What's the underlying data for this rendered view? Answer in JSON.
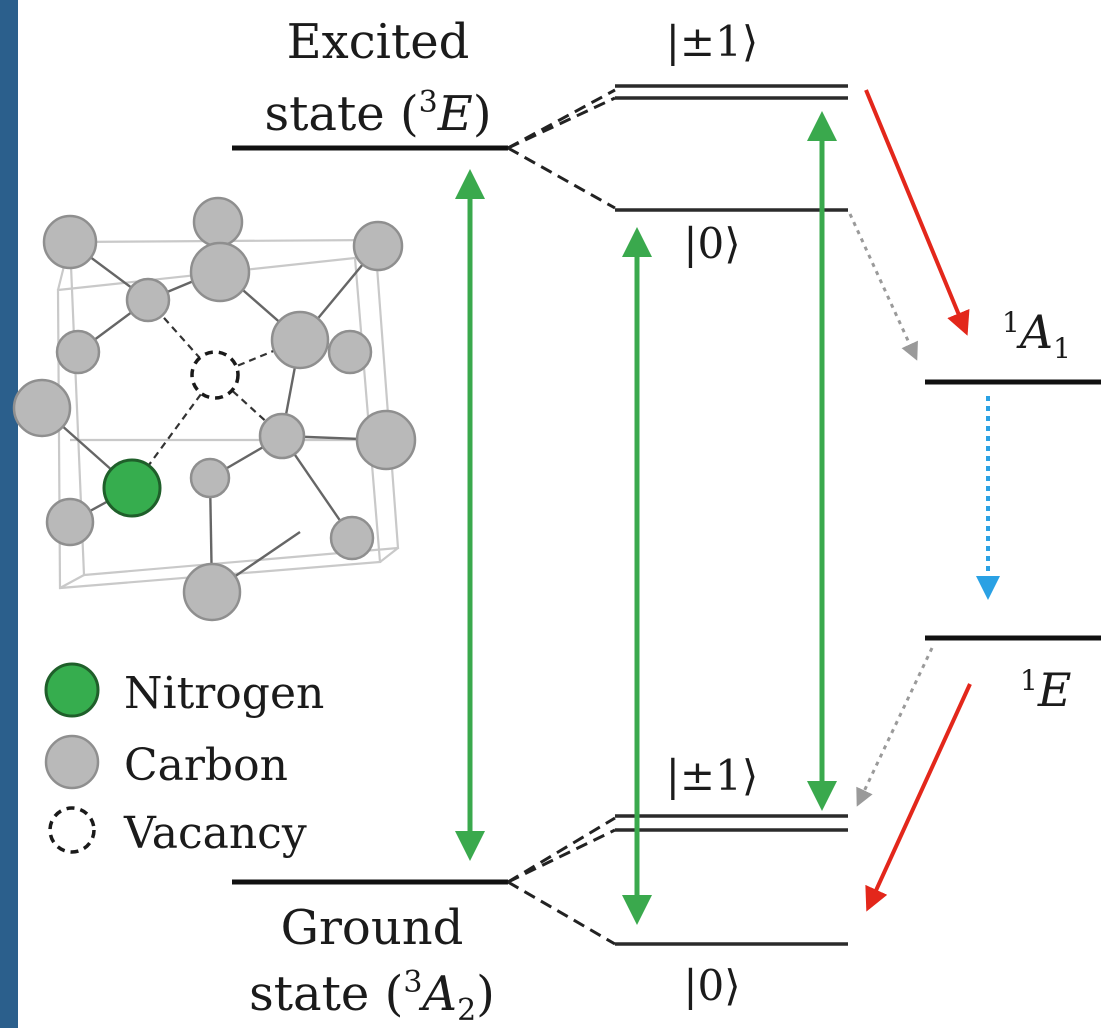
{
  "diagram": {
    "excited_state": {
      "line1": "Excited",
      "line2": "state (",
      "sup": "3",
      "italic": "E",
      "close": ")"
    },
    "ground_state": {
      "line1": "Ground",
      "line2": "state (",
      "sup": "3",
      "italic": "A",
      "sub": "2",
      "close": ")"
    },
    "excited_pm1": "|±1⟩",
    "excited_0": "|0⟩",
    "ground_pm1": "|±1⟩",
    "ground_0": "|0⟩",
    "singlet_a1": {
      "sup": "1",
      "italic": "A",
      "sub": "1"
    },
    "singlet_e": {
      "sup": "1",
      "italic": "E"
    }
  },
  "legend": {
    "nitrogen": "Nitrogen",
    "carbon": "Carbon",
    "vacancy": "Vacancy"
  },
  "colors": {
    "frame_edge": "#2b5f8c",
    "nitrogen": "#36ad4e",
    "carbon": "#b9b9b9",
    "optical_transition": "#3aa94d",
    "intersystem_crossing": "#e3271b",
    "singlet_decay": "#2aa1e4",
    "weak_crossing": "#9a9a9a"
  }
}
